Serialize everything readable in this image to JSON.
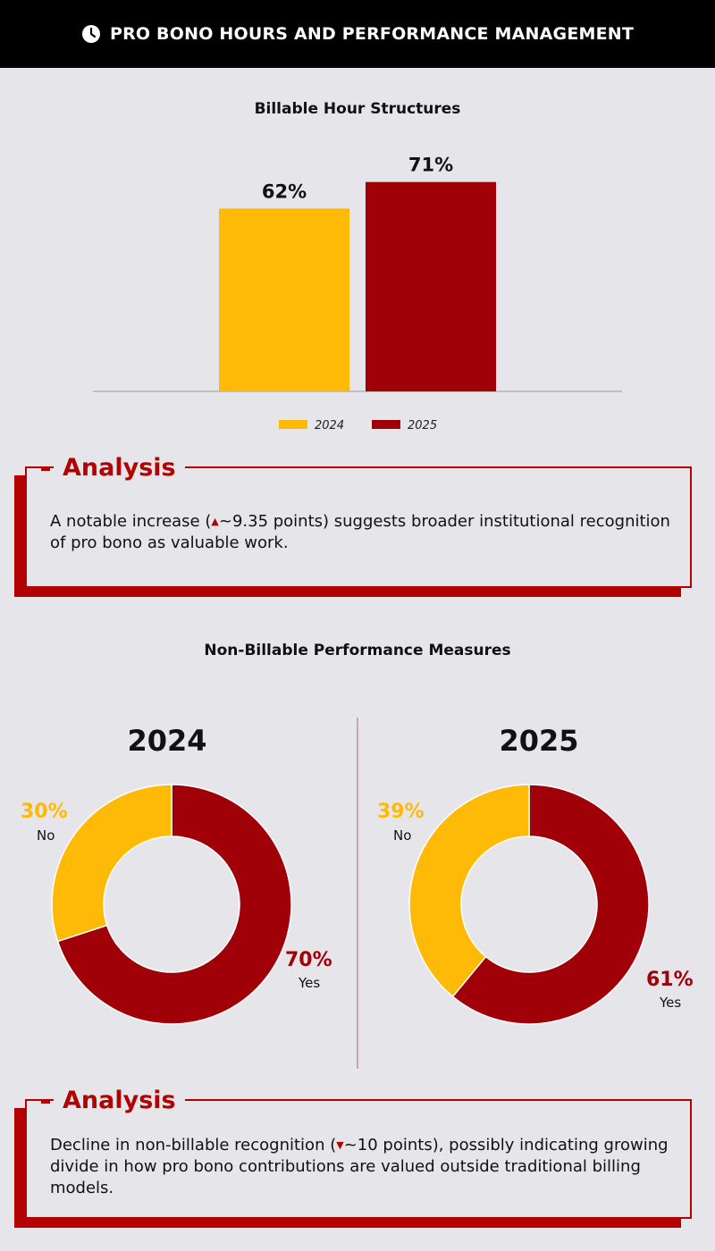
{
  "header": {
    "title": "PRO BONO HOURS AND PERFORMANCE MANAGEMENT",
    "icon": "clock-icon"
  },
  "colors": {
    "c2024": "#ffba08",
    "c2025": "#a00008",
    "accent": "#b30000"
  },
  "bar_section": {
    "title": "Billable Hour Structures"
  },
  "donut_section": {
    "title": "Non-Billable Performance Measures"
  },
  "analysis1": {
    "label": "Analysis",
    "text_before": "A notable increase (",
    "text_after": "~9.35 points) suggests broader institutional recognition of pro bono as valuable work."
  },
  "analysis2": {
    "label": "Analysis",
    "text_before": "Decline in non-billable recognition (",
    "text_after": "~10 points), possibly indicating growing divide in how pro bono contributions are valued outside traditional billing models."
  },
  "chart_data": [
    {
      "type": "bar",
      "title": "Billable Hour Structures",
      "categories": [
        "2024",
        "2025"
      ],
      "values": [
        62,
        71
      ],
      "value_labels": [
        "62%",
        "71%"
      ],
      "ylim": [
        0,
        100
      ],
      "legend": [
        "2024",
        "2025"
      ],
      "legend_position": "bottom",
      "grid": false
    },
    {
      "type": "pie",
      "title": "2024",
      "labels": [
        "Yes",
        "No"
      ],
      "values": [
        70,
        30
      ],
      "value_labels": [
        "70%",
        "30%"
      ]
    },
    {
      "type": "pie",
      "title": "2025",
      "labels": [
        "Yes",
        "No"
      ],
      "values": [
        61,
        39
      ],
      "value_labels": [
        "61%",
        "39%"
      ]
    }
  ]
}
